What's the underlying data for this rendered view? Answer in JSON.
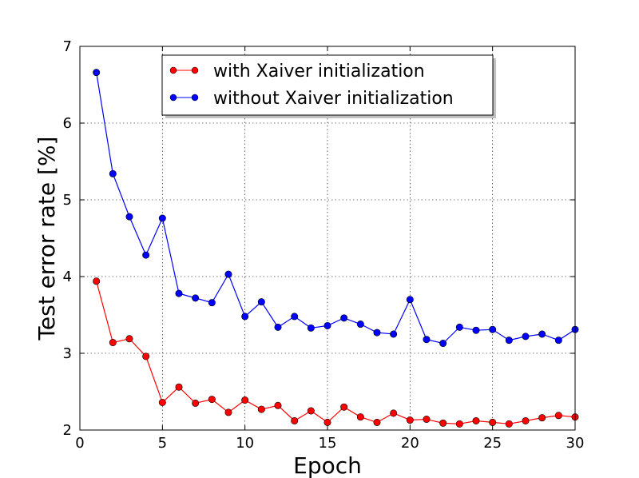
{
  "chart_data": {
    "type": "line",
    "title": "",
    "xlabel": "Epoch",
    "ylabel": "Test error rate [%]",
    "xlim": [
      0,
      30
    ],
    "ylim": [
      2,
      7
    ],
    "xticks": [
      0,
      5,
      10,
      15,
      20,
      25,
      30
    ],
    "yticks": [
      2,
      3,
      4,
      5,
      6,
      7
    ],
    "grid": true,
    "legend_position": "top-center",
    "series": [
      {
        "name": "with Xaiver initialization",
        "color": "#ff0000",
        "x": [
          1,
          2,
          3,
          4,
          5,
          6,
          7,
          8,
          9,
          10,
          11,
          12,
          13,
          14,
          15,
          16,
          17,
          18,
          19,
          20,
          21,
          22,
          23,
          24,
          25,
          26,
          27,
          28,
          29,
          30
        ],
        "values": [
          3.94,
          3.14,
          3.19,
          2.96,
          2.36,
          2.56,
          2.35,
          2.4,
          2.23,
          2.39,
          2.27,
          2.32,
          2.12,
          2.25,
          2.1,
          2.3,
          2.17,
          2.1,
          2.22,
          2.13,
          2.14,
          2.09,
          2.08,
          2.12,
          2.1,
          2.08,
          2.12,
          2.16,
          2.19,
          2.17
        ]
      },
      {
        "name": "without Xaiver initialization",
        "color": "#0000ff",
        "x": [
          1,
          2,
          3,
          4,
          5,
          6,
          7,
          8,
          9,
          10,
          11,
          12,
          13,
          14,
          15,
          16,
          17,
          18,
          19,
          20,
          21,
          22,
          23,
          24,
          25,
          26,
          27,
          28,
          29,
          30
        ],
        "values": [
          6.66,
          5.34,
          4.78,
          4.28,
          4.76,
          3.78,
          3.72,
          3.66,
          4.03,
          3.48,
          3.67,
          3.34,
          3.48,
          3.33,
          3.36,
          3.46,
          3.38,
          3.27,
          3.25,
          3.7,
          3.18,
          3.13,
          3.34,
          3.3,
          3.31,
          3.17,
          3.22,
          3.25,
          3.17,
          3.31
        ]
      }
    ]
  }
}
